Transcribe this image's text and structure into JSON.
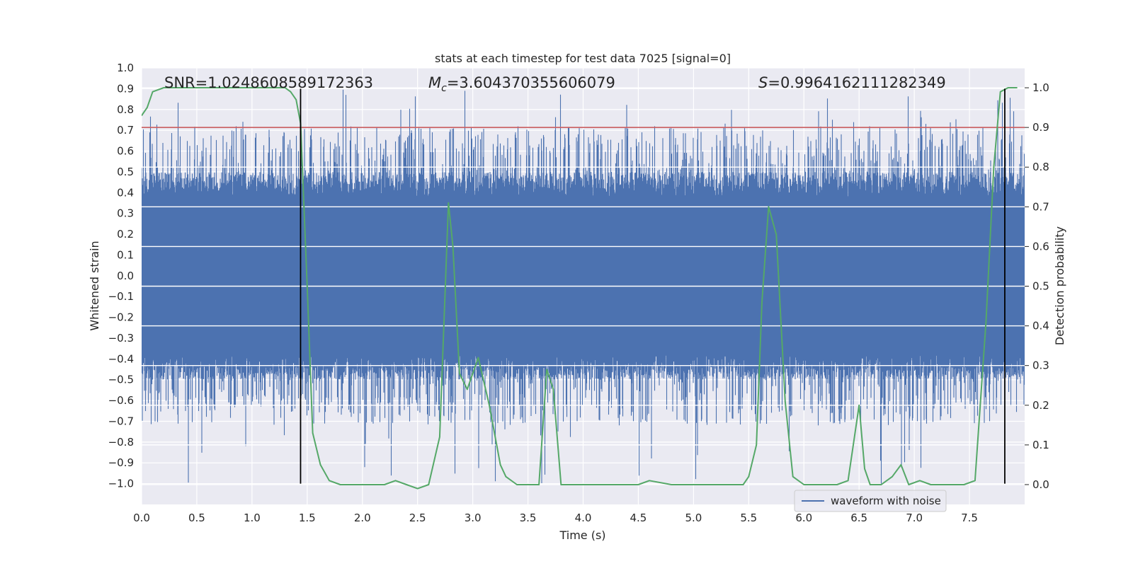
{
  "chart_data": {
    "type": "line",
    "title": "stats at each timestep for test data 7025 [signal=0]",
    "xlabel": "Time (s)",
    "ylabel_left": "Whitened strain",
    "ylabel_right": "Detection probability",
    "xlim": [
      0.0,
      8.0
    ],
    "ylim_left": [
      -1.1,
      1.0
    ],
    "ylim_right": [
      -0.05,
      1.05
    ],
    "x_ticks": [
      "0.0",
      "0.5",
      "1.0",
      "1.5",
      "2.0",
      "2.5",
      "3.0",
      "3.5",
      "4.0",
      "4.5",
      "5.0",
      "5.5",
      "6.0",
      "6.5",
      "7.0",
      "7.5"
    ],
    "y_left_ticks": [
      "1.0",
      "0.9",
      "0.8",
      "0.7",
      "0.6",
      "0.5",
      "0.4",
      "0.3",
      "0.2",
      "0.1",
      "0.0",
      "−0.1",
      "−0.2",
      "−0.3",
      "−0.4",
      "−0.5",
      "−0.6",
      "−0.7",
      "−0.8",
      "−0.9",
      "−1.0"
    ],
    "y_right_ticks": [
      "1.0",
      "0.9",
      "0.8",
      "0.7",
      "0.6",
      "0.5",
      "0.4",
      "0.3",
      "0.2",
      "0.1",
      "0.0"
    ],
    "grid": true,
    "legend": {
      "position": "lower-right",
      "entries": [
        "waveform with noise"
      ]
    },
    "annotations": {
      "snr_text": "SNR=1.0248608589172363",
      "mc_symbol": "M",
      "mc_subscript": "c",
      "mc_value": "=3.604370355606079",
      "s_symbol": "S",
      "s_value": "=0.9964162111282349"
    },
    "series": [
      {
        "name": "waveform with noise",
        "axis": "left",
        "style": "dense filled noise",
        "color": "#4c72b0",
        "core_band": [
          -0.5,
          0.5
        ],
        "approx_extremes": [
          -1.0,
          0.9
        ]
      },
      {
        "name": "detection probability",
        "axis": "right",
        "color": "#55a868",
        "x": [
          0.0,
          0.05,
          0.1,
          0.2,
          0.3,
          0.5,
          0.7,
          0.9,
          1.1,
          1.2,
          1.3,
          1.35,
          1.4,
          1.44,
          1.5,
          1.55,
          1.62,
          1.7,
          1.8,
          1.9,
          2.0,
          2.1,
          2.2,
          2.3,
          2.4,
          2.5,
          2.6,
          2.7,
          2.78,
          2.82,
          2.88,
          2.95,
          3.05,
          3.15,
          3.25,
          3.3,
          3.4,
          3.55,
          3.6,
          3.67,
          3.73,
          3.8,
          3.9,
          4.0,
          4.1,
          4.3,
          4.5,
          4.6,
          4.8,
          5.0,
          5.2,
          5.45,
          5.5,
          5.57,
          5.62,
          5.68,
          5.75,
          5.83,
          5.9,
          6.0,
          6.1,
          6.3,
          6.4,
          6.5,
          6.55,
          6.6,
          6.7,
          6.8,
          6.88,
          6.95,
          7.05,
          7.15,
          7.3,
          7.45,
          7.55,
          7.65,
          7.72,
          7.78,
          7.85,
          7.93
        ],
        "values": [
          0.93,
          0.95,
          0.99,
          1.0,
          1.0,
          1.0,
          1.0,
          1.0,
          1.0,
          1.0,
          1.0,
          0.99,
          0.97,
          0.91,
          0.5,
          0.13,
          0.05,
          0.01,
          0.0,
          0.0,
          0.0,
          0.0,
          0.0,
          0.01,
          0.0,
          -0.01,
          0.0,
          0.12,
          0.71,
          0.6,
          0.28,
          0.24,
          0.32,
          0.2,
          0.05,
          0.02,
          0.0,
          0.0,
          0.0,
          0.29,
          0.24,
          0.0,
          0.0,
          0.0,
          0.0,
          0.0,
          0.0,
          0.01,
          0.0,
          0.0,
          0.0,
          0.0,
          0.02,
          0.1,
          0.46,
          0.7,
          0.63,
          0.21,
          0.02,
          0.0,
          0.0,
          0.0,
          0.01,
          0.2,
          0.04,
          0.0,
          0.0,
          0.02,
          0.05,
          0.0,
          0.01,
          0.0,
          0.0,
          0.0,
          0.01,
          0.41,
          0.8,
          0.99,
          1.0,
          1.0
        ]
      },
      {
        "name": "threshold",
        "axis": "right",
        "color": "#c44e52",
        "y": 0.9
      }
    ],
    "vertical_markers": [
      {
        "x": 1.44,
        "ymin": -1.0,
        "ymax": 0.9,
        "axis": "left"
      },
      {
        "x": 7.82,
        "ymin": -1.0,
        "ymax": 0.9,
        "axis": "left"
      }
    ]
  }
}
